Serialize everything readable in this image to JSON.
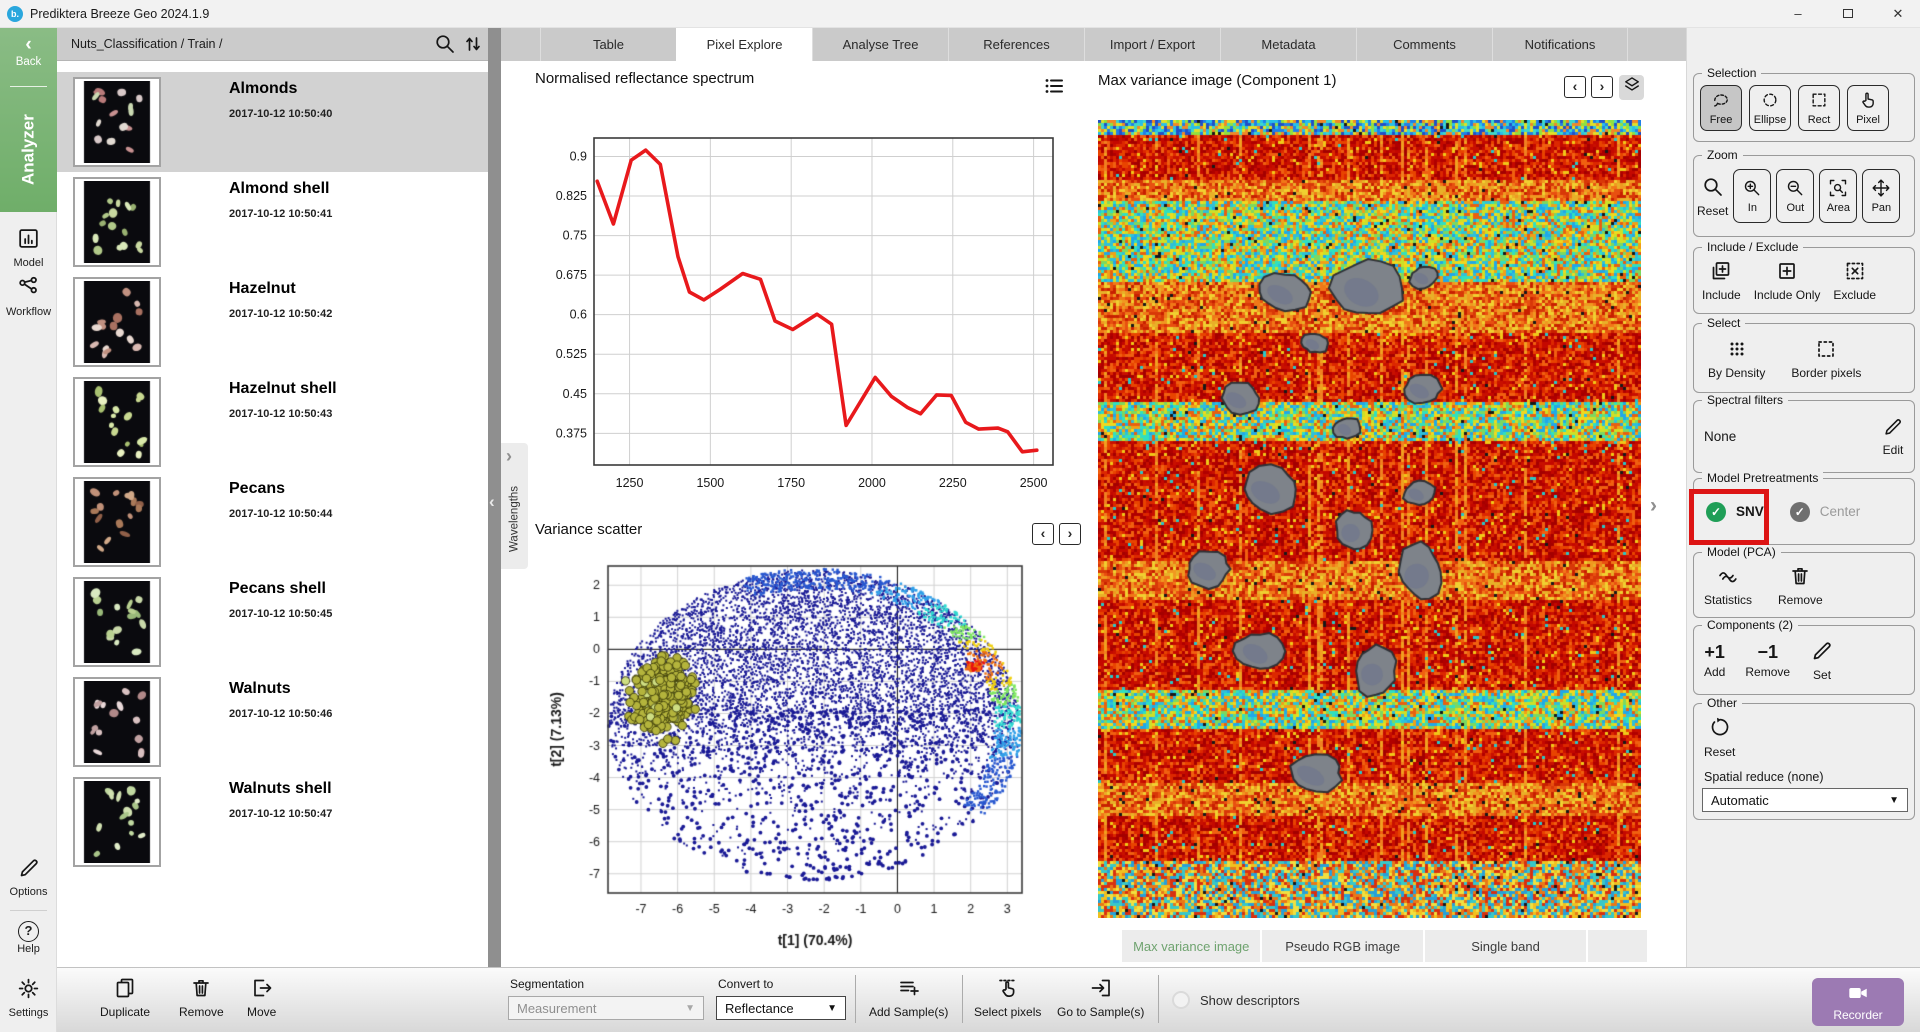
{
  "window": {
    "app_title": "Prediktera Breeze Geo 2024.1.9",
    "logo_text": "b.",
    "minimize": "–",
    "close": "✕"
  },
  "glyphs": {
    "back": "‹",
    "prev": "‹",
    "next": "›",
    "chev_left": "‹",
    "chev_right": "›",
    "dropdown": "▼",
    "check": "✓",
    "help": "?"
  },
  "nav_rail": {
    "back_label": "Back",
    "module_label": "Analyzer",
    "items": [
      {
        "label": "Model",
        "icon": "modelwin"
      },
      {
        "label": "Workflow",
        "icon": "network"
      }
    ],
    "bottom_items": [
      {
        "label": "Options",
        "icon": "pencil"
      },
      {
        "label": "Help",
        "icon": "help"
      },
      {
        "label": "Settings",
        "icon": "gear"
      }
    ],
    "green": "#79b275"
  },
  "explorer": {
    "breadcrumb": "Nuts_Classification / Train /",
    "samples": [
      {
        "name": "Almonds",
        "timestamp": "2017-10-12 10:50:40",
        "selected": true,
        "palette": [
          "#d9c9c9",
          "#c89191",
          "#e2dad2",
          "#b97a7a",
          "#cbd9b2"
        ]
      },
      {
        "name": "Almond shell",
        "timestamp": "2017-10-12 10:50:41",
        "selected": false,
        "palette": [
          "#c9d9a1",
          "#b1c989",
          "#d9e9b9",
          "#99b171"
        ]
      },
      {
        "name": "Hazelnut",
        "timestamp": "2017-10-12 10:50:42",
        "selected": false,
        "palette": [
          "#d9b9b1",
          "#c19181",
          "#e9d9d1",
          "#a97161"
        ]
      },
      {
        "name": "Hazelnut shell",
        "timestamp": "2017-10-12 10:50:43",
        "selected": false,
        "palette": [
          "#c9d991",
          "#d9e9a9",
          "#a9c171",
          "#e9f1c1"
        ]
      },
      {
        "name": "Pecans",
        "timestamp": "2017-10-12 10:50:44",
        "selected": false,
        "palette": [
          "#c19179",
          "#a97959",
          "#d1a989",
          "#916049"
        ]
      },
      {
        "name": "Pecans shell",
        "timestamp": "2017-10-12 10:50:45",
        "selected": false,
        "palette": [
          "#c9d9a9",
          "#b9d191",
          "#d9e9c1",
          "#99b979"
        ]
      },
      {
        "name": "Walnuts",
        "timestamp": "2017-10-12 10:50:46",
        "selected": false,
        "palette": [
          "#d9c1c1",
          "#e9d9d9",
          "#c1a1a1",
          "#b18989"
        ]
      },
      {
        "name": "Walnuts shell",
        "timestamp": "2017-10-12 10:50:47",
        "selected": false,
        "palette": [
          "#d1e1b1",
          "#c1d9a1",
          "#e1edc9",
          "#a9c589"
        ]
      }
    ]
  },
  "tabs": {
    "items": [
      "Table",
      "Pixel Explore",
      "Analyse Tree",
      "References",
      "Import / Export",
      "Metadata",
      "Comments",
      "Notifications"
    ],
    "active": "Pixel Explore"
  },
  "wavelengths": {
    "label": "Wavelengths"
  },
  "image_panel": {
    "title": "Max variance image (Component  1)",
    "tabs": [
      {
        "label": "Max variance image",
        "active": true
      },
      {
        "label": "Pseudo RGB image",
        "active": false
      },
      {
        "label": "Single band",
        "active": false
      }
    ],
    "active_color": "#6fa36f"
  },
  "chart_data": [
    {
      "type": "line",
      "title": "Normalised reflectance spectrum",
      "xlabel": "",
      "ylabel": "",
      "x": [
        1150,
        1200,
        1255,
        1300,
        1345,
        1400,
        1435,
        1480,
        1530,
        1600,
        1655,
        1700,
        1755,
        1830,
        1875,
        1920,
        2010,
        2060,
        2110,
        2150,
        2200,
        2245,
        2290,
        2330,
        2390,
        2420,
        2465,
        2510
      ],
      "y": [
        0.853,
        0.772,
        0.893,
        0.912,
        0.885,
        0.71,
        0.643,
        0.628,
        0.648,
        0.678,
        0.667,
        0.588,
        0.572,
        0.601,
        0.582,
        0.39,
        0.481,
        0.445,
        0.424,
        0.412,
        0.448,
        0.447,
        0.396,
        0.383,
        0.385,
        0.378,
        0.34,
        0.343
      ],
      "xticks": [
        1250,
        1500,
        1750,
        2000,
        2250,
        2500
      ],
      "yticks": [
        0.9,
        0.825,
        0.75,
        0.675,
        0.6,
        0.525,
        0.45,
        0.375
      ],
      "xlim": [
        1140,
        2560
      ],
      "ylim": [
        0.315,
        0.935
      ],
      "grid": true,
      "line_color": "#e8191c"
    },
    {
      "type": "scatter",
      "title": "Variance scatter",
      "xlabel": "t[1] (70.4%)",
      "ylabel": "t[2] (7.13%)",
      "xticks": [
        -7,
        -6,
        -5,
        -4,
        -3,
        -2,
        -1,
        0,
        1,
        2,
        3
      ],
      "yticks": [
        2,
        1,
        0,
        -1,
        -2,
        -3,
        -4,
        -5,
        -6,
        -7
      ],
      "xlim": [
        -7.9,
        3.4
      ],
      "ylim": [
        -7.6,
        2.6
      ],
      "grid": true,
      "crosshair": [
        0,
        0
      ],
      "cloud": {
        "center": [
          -2.3,
          -2.35
        ],
        "rx": 5.6,
        "ry": 4.85,
        "color": "#1a1a96",
        "n": 12000
      },
      "rim": {
        "hotspot": [
          2.05,
          -0.5
        ],
        "colors": [
          "#e81010",
          "#f07010",
          "#f0d010",
          "#7ee860",
          "#30d8d0",
          "#309fe8",
          "#2858d0"
        ],
        "n": 950
      },
      "cluster": {
        "center": [
          -6.4,
          -1.45
        ],
        "sx": 0.78,
        "sy": 1.05,
        "n": 400,
        "fill": "#b4b43c",
        "light_fill": "#cede82",
        "stroke": "#3c3c0a",
        "radius": 4.2
      }
    },
    {
      "type": "heatmap",
      "title": "Max variance image (Component  1)",
      "bands": [
        {
          "y0": 0.0,
          "y1": 0.016,
          "t": "cool"
        },
        {
          "y0": 0.016,
          "y1": 0.072,
          "t": "hot"
        },
        {
          "y0": 0.072,
          "y1": 0.1,
          "t": "warm"
        },
        {
          "y0": 0.1,
          "y1": 0.2,
          "t": "mix"
        },
        {
          "y0": 0.2,
          "y1": 0.265,
          "t": "warm"
        },
        {
          "y0": 0.265,
          "y1": 0.35,
          "t": "hot"
        },
        {
          "y0": 0.35,
          "y1": 0.402,
          "t": "mix"
        },
        {
          "y0": 0.402,
          "y1": 0.552,
          "t": "hot"
        },
        {
          "y0": 0.552,
          "y1": 0.598,
          "t": "warm"
        },
        {
          "y0": 0.598,
          "y1": 0.712,
          "t": "hot"
        },
        {
          "y0": 0.712,
          "y1": 0.762,
          "t": "mix"
        },
        {
          "y0": 0.762,
          "y1": 0.828,
          "t": "hot"
        },
        {
          "y0": 0.828,
          "y1": 0.872,
          "t": "warm"
        },
        {
          "y0": 0.872,
          "y1": 0.928,
          "t": "hot"
        },
        {
          "y0": 0.928,
          "y1": 1.0,
          "t": "mix2"
        }
      ],
      "palettes": {
        "hot": [
          "#b00000",
          "#c81000",
          "#dc2800",
          "#e84400",
          "#c40800",
          "#a40000",
          "#f06010"
        ],
        "warm": [
          "#e85010",
          "#f07818",
          "#f09820",
          "#e8b028",
          "#d83808",
          "#f0d030",
          "#c82000"
        ],
        "mix": [
          "#f0d81f",
          "#cce028",
          "#7cd860",
          "#2fc0d8",
          "#f0a018",
          "#e86010",
          "#30e0c0",
          "#20a8e8"
        ],
        "cool": [
          "#2080e8",
          "#28c0e8",
          "#40d8c8",
          "#e0e028",
          "#f08828",
          "#2050c8",
          "#90e040"
        ],
        "mix2": [
          "#f0c020",
          "#e87818",
          "#38c8c8",
          "#d83010",
          "#f0e040",
          "#28a0d8"
        ]
      },
      "blobs": [
        [
          187,
          172,
          25,
          18
        ],
        [
          270,
          168,
          33,
          29
        ],
        [
          326,
          157,
          14,
          11
        ],
        [
          142,
          278,
          20,
          15
        ],
        [
          217,
          223,
          13,
          10
        ],
        [
          249,
          308,
          13,
          11
        ],
        [
          325,
          269,
          19,
          14
        ],
        [
          173,
          369,
          28,
          22
        ],
        [
          256,
          410,
          17,
          20
        ],
        [
          321,
          373,
          15,
          12
        ],
        [
          111,
          449,
          22,
          17
        ],
        [
          323,
          452,
          22,
          28
        ],
        [
          162,
          531,
          24,
          19
        ],
        [
          278,
          551,
          20,
          24
        ],
        [
          218,
          653,
          27,
          18
        ]
      ],
      "blob_fill": "#7e838a",
      "blob_stroke": "#2e3136"
    }
  ],
  "toolbox": {
    "highlight_color": "#dd1414",
    "groups": [
      {
        "label": "Selection",
        "kind": "boxed",
        "buttons": [
          {
            "label": "Free",
            "icon": "lasso",
            "selected": true
          },
          {
            "label": "Ellipse",
            "icon": "ellipse"
          },
          {
            "label": "Rect",
            "icon": "rectsel"
          },
          {
            "label": "Pixel",
            "icon": "hand"
          }
        ]
      },
      {
        "label": "Zoom",
        "kind": "boxed",
        "buttons": [
          {
            "label": "Reset",
            "icon": "magnifier",
            "boxed": false
          },
          {
            "label": "In",
            "icon": "magplus"
          },
          {
            "label": "Out",
            "icon": "magminus"
          },
          {
            "label": "Area",
            "icon": "zoomarea"
          },
          {
            "label": "Pan",
            "icon": "pan"
          }
        ]
      },
      {
        "label": "Include / Exclude",
        "kind": "plain",
        "buttons": [
          {
            "label": "Include",
            "icon": "include"
          },
          {
            "label": "Include Only",
            "icon": "includeonly"
          },
          {
            "label": "Exclude",
            "icon": "exclude"
          }
        ]
      },
      {
        "label": "Select",
        "kind": "plain",
        "buttons": [
          {
            "label": "By Density",
            "icon": "density"
          },
          {
            "label": "Border pixels",
            "icon": "borderpx"
          }
        ]
      },
      {
        "label": "Spectral filters",
        "value": "None",
        "edit_label": "Edit"
      },
      {
        "label": "Model Pretreatments",
        "toggles": [
          {
            "label": "SNV",
            "highlighted": true,
            "check_color": "#1f9e57"
          },
          {
            "label": "Center",
            "muted": true,
            "check_color": "#6f6f6f"
          }
        ]
      },
      {
        "label": "Model (PCA)",
        "kind": "plain",
        "buttons": [
          {
            "label": "Statistics",
            "icon": "stats"
          },
          {
            "label": "Remove",
            "icon": "trash"
          }
        ]
      },
      {
        "label": "Components (2)",
        "kind": "plain",
        "buttons": [
          {
            "label": "Add",
            "text": "+1"
          },
          {
            "label": "Remove",
            "text": "−1"
          },
          {
            "label": "Set",
            "icon": "pencil"
          }
        ]
      },
      {
        "label": "Other",
        "reset_label": "Reset",
        "spatial_label": "Spatial reduce (none)",
        "spatial_value": "Automatic"
      }
    ]
  },
  "bottom_bar": {
    "duplicate": "Duplicate",
    "remove": "Remove",
    "move": "Move",
    "segmentation_label": "Segmentation",
    "segmentation_value": "Measurement",
    "convert_label": "Convert to",
    "convert_value": "Reflectance",
    "add_samples": "Add Sample(s)",
    "select_pixels": "Select pixels",
    "goto_samples": "Go to Sample(s)",
    "show_descriptors": "Show descriptors",
    "recorder": "Recorder",
    "recorder_color": "#9c7ab3"
  }
}
